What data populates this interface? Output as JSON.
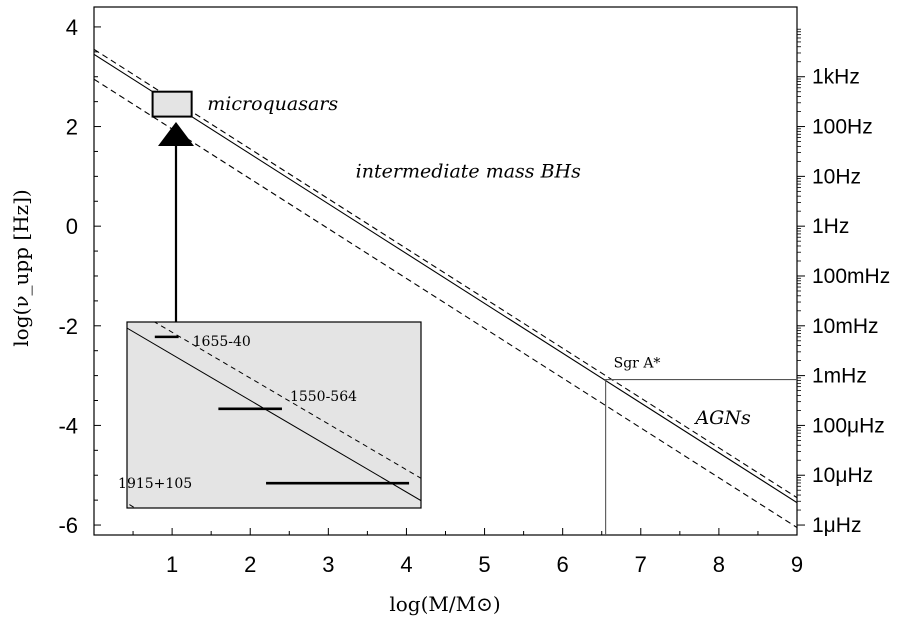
{
  "chart_data": {
    "type": "line",
    "xlabel": "log(M/M⊙)",
    "ylabel": "log(ν_upp [Hz])",
    "xlim": [
      0,
      9
    ],
    "ylim": [
      -6.2,
      4.4
    ],
    "x_ticks": [
      "1",
      "2",
      "3",
      "4",
      "5",
      "6",
      "7",
      "8",
      "9"
    ],
    "y_ticks": [
      "4",
      "2",
      "0",
      "-2",
      "-4",
      "-6"
    ],
    "y_tick_values": [
      4,
      2,
      0,
      -2,
      -4,
      -6
    ],
    "right_axis_ticks": [
      {
        "label": "1kHz",
        "value": 3
      },
      {
        "label": "100Hz",
        "value": 2
      },
      {
        "label": "10Hz",
        "value": 1
      },
      {
        "label": "1Hz",
        "value": 0
      },
      {
        "label": "100mHz",
        "value": -1
      },
      {
        "label": "10mHz",
        "value": -2
      },
      {
        "label": "1mHz",
        "value": -3
      },
      {
        "label": "100μHz",
        "value": -4
      },
      {
        "label": "10μHz",
        "value": -5
      },
      {
        "label": "1μHz",
        "value": -6
      }
    ],
    "series": [
      {
        "style": "solid",
        "x": [
          0,
          9
        ],
        "y": [
          3.45,
          -5.55
        ]
      },
      {
        "style": "dashed",
        "x": [
          0,
          9
        ],
        "y": [
          3.55,
          -5.45
        ]
      },
      {
        "style": "dashed",
        "x": [
          0,
          9
        ],
        "y": [
          2.95,
          -6.05
        ]
      }
    ],
    "regions": [
      {
        "label": "microquasars",
        "x": [
          0.75,
          1.25
        ],
        "y": [
          2.2,
          2.7
        ]
      },
      {
        "label": "AGNs",
        "x": [
          6.55,
          9
        ],
        "y": [
          -6.2,
          -3.08
        ]
      }
    ],
    "annotations": [
      {
        "text": "microquasars",
        "x": 1.45,
        "y": 2.45
      },
      {
        "text": "intermediate mass BHs",
        "x": 3.35,
        "y": 1.1
      },
      {
        "text": "Sgr A*",
        "x": 6.55,
        "y": -3.08
      },
      {
        "text": "AGNs",
        "x": 7.7,
        "y": -3.85
      }
    ],
    "inset": {
      "sources": [
        {
          "name": "1655-40",
          "x": [
            0.8,
            1.1
          ],
          "y": -2.2
        },
        {
          "name": "1550-564",
          "x": [
            1.6,
            2.4
          ],
          "y": -3.65
        },
        {
          "name": "1915+105",
          "x": [
            2.2,
            4.0
          ],
          "y": -5.15
        }
      ]
    },
    "grid": false
  }
}
